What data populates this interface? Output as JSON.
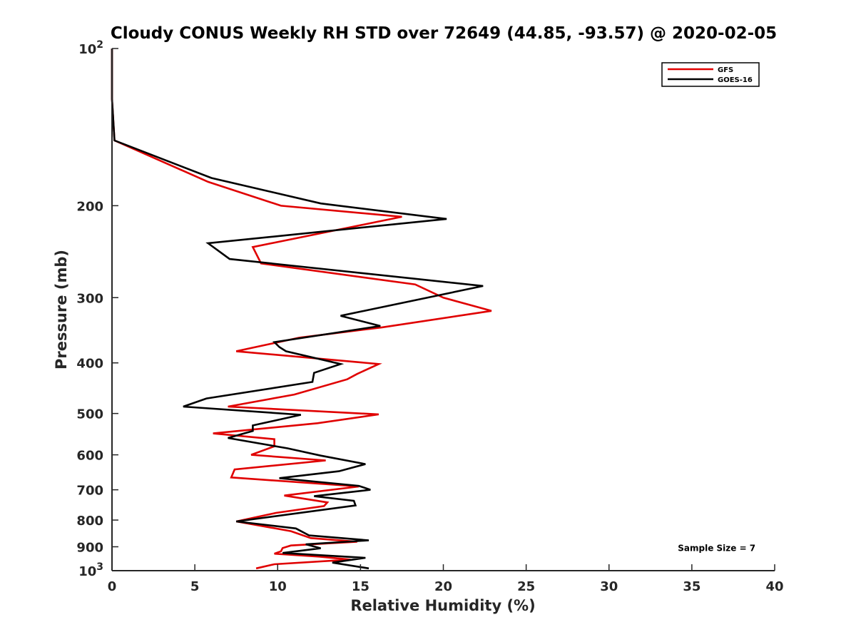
{
  "chart_data": {
    "type": "line",
    "title": "Cloudy CONUS Weekly RH STD over 72649 (44.85, -93.57) @ 2020-02-05",
    "xlabel": "Relative Humidity (%)",
    "ylabel": "Pressure (mb)",
    "xlim": [
      0,
      40
    ],
    "ylim": [
      100,
      1000
    ],
    "y_scale": "log",
    "y_reversed": true,
    "grid": false,
    "legend_position": "top-right",
    "x_ticks": [
      "0",
      "5",
      "10",
      "15",
      "20",
      "25",
      "30",
      "35",
      "40"
    ],
    "y_ticks": [
      {
        "value": 100,
        "base": "10",
        "exp": "2"
      },
      {
        "value": 200,
        "label": "200"
      },
      {
        "value": 300,
        "label": "300"
      },
      {
        "value": 400,
        "label": "400"
      },
      {
        "value": 500,
        "label": "500"
      },
      {
        "value": 600,
        "label": "600"
      },
      {
        "value": 700,
        "label": "700"
      },
      {
        "value": 800,
        "label": "800"
      },
      {
        "value": 900,
        "label": "900"
      },
      {
        "value": 1000,
        "base": "10",
        "exp": "3"
      }
    ],
    "series": [
      {
        "name": "GFS",
        "color": "#e00000",
        "points": [
          [
            0.0,
            100
          ],
          [
            0.0,
            125
          ],
          [
            0.15,
            150
          ],
          [
            5.8,
            180
          ],
          [
            10.2,
            200
          ],
          [
            17.5,
            210
          ],
          [
            8.5,
            240
          ],
          [
            9.0,
            258
          ],
          [
            18.3,
            283
          ],
          [
            20.0,
            300
          ],
          [
            22.9,
            318
          ],
          [
            16.3,
            342
          ],
          [
            11.3,
            358
          ],
          [
            7.5,
            380
          ],
          [
            16.1,
            402
          ],
          [
            14.8,
            420
          ],
          [
            14.2,
            430
          ],
          [
            11.0,
            460
          ],
          [
            7.0,
            485
          ],
          [
            16.1,
            502
          ],
          [
            12.4,
            522
          ],
          [
            6.1,
            546
          ],
          [
            9.8,
            560
          ],
          [
            9.8,
            578
          ],
          [
            8.4,
            600
          ],
          [
            12.9,
            615
          ],
          [
            7.4,
            640
          ],
          [
            7.2,
            663
          ],
          [
            14.9,
            690
          ],
          [
            10.4,
            718
          ],
          [
            13.0,
            740
          ],
          [
            12.8,
            752
          ],
          [
            9.9,
            775
          ],
          [
            7.5,
            805
          ],
          [
            10.8,
            840
          ],
          [
            12.0,
            866
          ],
          [
            14.8,
            880
          ],
          [
            10.8,
            895
          ],
          [
            10.3,
            905
          ],
          [
            10.2,
            918
          ],
          [
            9.8,
            928
          ],
          [
            12.5,
            940
          ],
          [
            14.4,
            952
          ],
          [
            9.8,
            972
          ],
          [
            8.7,
            990
          ]
        ]
      },
      {
        "name": "GOES-16",
        "color": "#000000",
        "points": [
          [
            0.0,
            100
          ],
          [
            0.0,
            125
          ],
          [
            0.15,
            150
          ],
          [
            6.0,
            177
          ],
          [
            12.6,
            198
          ],
          [
            20.2,
            212
          ],
          [
            5.8,
            236
          ],
          [
            7.1,
            253
          ],
          [
            22.4,
            285
          ],
          [
            13.8,
            325
          ],
          [
            16.2,
            340
          ],
          [
            9.8,
            365
          ],
          [
            10.1,
            373
          ],
          [
            10.5,
            380
          ],
          [
            13.8,
            402
          ],
          [
            12.2,
            418
          ],
          [
            12.1,
            435
          ],
          [
            5.7,
            468
          ],
          [
            4.3,
            485
          ],
          [
            11.4,
            503
          ],
          [
            8.5,
            527
          ],
          [
            8.5,
            540
          ],
          [
            7.0,
            557
          ],
          [
            10.6,
            583
          ],
          [
            12.6,
            602
          ],
          [
            15.3,
            625
          ],
          [
            13.7,
            645
          ],
          [
            10.1,
            665
          ],
          [
            14.9,
            688
          ],
          [
            15.6,
            700
          ],
          [
            12.2,
            720
          ],
          [
            14.6,
            735
          ],
          [
            14.7,
            750
          ],
          [
            7.5,
            805
          ],
          [
            11.1,
            830
          ],
          [
            11.9,
            856
          ],
          [
            15.5,
            875
          ],
          [
            11.7,
            890
          ],
          [
            12.6,
            906
          ],
          [
            10.3,
            925
          ],
          [
            15.3,
            945
          ],
          [
            13.3,
            965
          ],
          [
            15.5,
            990
          ]
        ]
      }
    ],
    "annotations": [
      {
        "text": "Sample Size = 7",
        "x": 36.5,
        "y": 905
      }
    ]
  }
}
